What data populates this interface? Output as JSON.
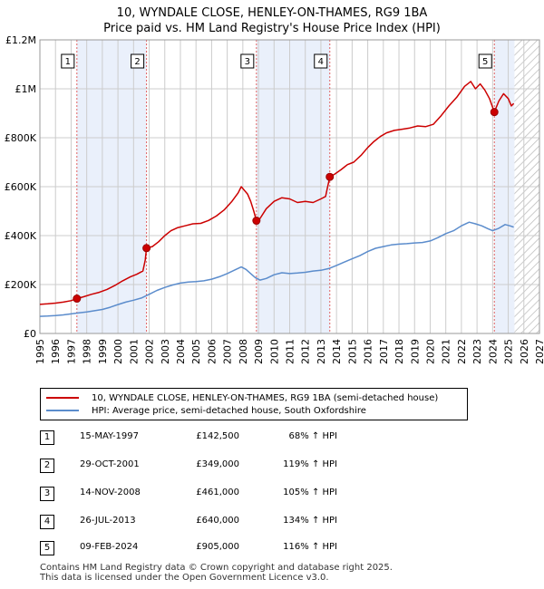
{
  "title": {
    "line1": "10, WYNDALE CLOSE, HENLEY-ON-THAMES, RG9 1BA",
    "line2": "Price paid vs. HM Land Registry's House Price Index (HPI)"
  },
  "colors": {
    "price_line": "#cc0000",
    "hpi_line": "#5b8ccc",
    "shade": "#eaf0fb",
    "marker_line": "#e06060",
    "grid": "#cccccc"
  },
  "chart_data": {
    "type": "line",
    "xlabel": "",
    "ylabel": "",
    "xlim": [
      1995,
      2027
    ],
    "ylim": [
      0,
      1200000
    ],
    "y_ticks": [
      0,
      200000,
      400000,
      600000,
      800000,
      1000000,
      1200000
    ],
    "y_tick_labels": [
      "£0",
      "£200K",
      "£400K",
      "£600K",
      "£800K",
      "£1M",
      "£1.2M"
    ],
    "x_ticks": [
      1995,
      1996,
      1997,
      1998,
      1999,
      2000,
      2001,
      2002,
      2003,
      2004,
      2005,
      2006,
      2007,
      2008,
      2009,
      2010,
      2011,
      2012,
      2013,
      2014,
      2015,
      2016,
      2017,
      2018,
      2019,
      2020,
      2021,
      2022,
      2023,
      2024,
      2025,
      2026,
      2027
    ],
    "x_tick_labels": [
      "1995",
      "1996",
      "1997",
      "1998",
      "1999",
      "2000",
      "2001",
      "2002",
      "2003",
      "2004",
      "2005",
      "2006",
      "2007",
      "2008",
      "2009",
      "2010",
      "2011",
      "2012",
      "2013",
      "2014",
      "2015",
      "2016",
      "2017",
      "2018",
      "2019",
      "2020",
      "2021",
      "2022",
      "2023",
      "2024",
      "2025",
      "2026",
      "2027"
    ],
    "shaded_ranges": [
      [
        1997.37,
        2001.83
      ],
      [
        2008.87,
        2013.57
      ],
      [
        2024.11,
        2025.4
      ]
    ],
    "forecast_start": 2025.4,
    "series": [
      {
        "name": "10, WYNDALE CLOSE, HENLEY-ON-THAMES, RG9 1BA (semi-detached house)",
        "color": "#cc0000",
        "points": [
          [
            1995.0,
            119000
          ],
          [
            1995.5,
            121000
          ],
          [
            1996.0,
            124000
          ],
          [
            1996.5,
            128000
          ],
          [
            1997.0,
            134000
          ],
          [
            1997.37,
            142500
          ],
          [
            1997.8,
            150000
          ],
          [
            1998.3,
            160000
          ],
          [
            1998.8,
            168000
          ],
          [
            1999.3,
            180000
          ],
          [
            1999.8,
            196000
          ],
          [
            2000.3,
            215000
          ],
          [
            2000.8,
            232000
          ],
          [
            2001.2,
            242000
          ],
          [
            2001.6,
            255000
          ],
          [
            2001.75,
            300000
          ],
          [
            2001.83,
            349000
          ],
          [
            2002.2,
            355000
          ],
          [
            2002.6,
            375000
          ],
          [
            2003.0,
            400000
          ],
          [
            2003.4,
            420000
          ],
          [
            2003.8,
            432000
          ],
          [
            2004.3,
            440000
          ],
          [
            2004.8,
            448000
          ],
          [
            2005.3,
            450000
          ],
          [
            2005.8,
            462000
          ],
          [
            2006.3,
            480000
          ],
          [
            2006.8,
            505000
          ],
          [
            2007.3,
            540000
          ],
          [
            2007.7,
            575000
          ],
          [
            2007.9,
            600000
          ],
          [
            2008.1,
            585000
          ],
          [
            2008.3,
            570000
          ],
          [
            2008.5,
            540000
          ],
          [
            2008.7,
            500000
          ],
          [
            2008.87,
            461000
          ],
          [
            2009.1,
            470000
          ],
          [
            2009.5,
            510000
          ],
          [
            2010.0,
            540000
          ],
          [
            2010.5,
            555000
          ],
          [
            2011.0,
            550000
          ],
          [
            2011.5,
            535000
          ],
          [
            2012.0,
            540000
          ],
          [
            2012.5,
            535000
          ],
          [
            2013.0,
            550000
          ],
          [
            2013.3,
            560000
          ],
          [
            2013.4,
            590000
          ],
          [
            2013.57,
            640000
          ],
          [
            2013.9,
            652000
          ],
          [
            2014.3,
            670000
          ],
          [
            2014.7,
            690000
          ],
          [
            2015.1,
            700000
          ],
          [
            2015.6,
            730000
          ],
          [
            2016.0,
            760000
          ],
          [
            2016.4,
            785000
          ],
          [
            2016.8,
            805000
          ],
          [
            2017.2,
            820000
          ],
          [
            2017.7,
            830000
          ],
          [
            2018.2,
            835000
          ],
          [
            2018.7,
            840000
          ],
          [
            2019.2,
            848000
          ],
          [
            2019.7,
            845000
          ],
          [
            2020.2,
            855000
          ],
          [
            2020.7,
            890000
          ],
          [
            2021.2,
            930000
          ],
          [
            2021.7,
            965000
          ],
          [
            2022.2,
            1010000
          ],
          [
            2022.6,
            1030000
          ],
          [
            2022.9,
            1000000
          ],
          [
            2023.2,
            1020000
          ],
          [
            2023.5,
            995000
          ],
          [
            2023.8,
            960000
          ],
          [
            2024.11,
            905000
          ],
          [
            2024.4,
            950000
          ],
          [
            2024.7,
            980000
          ],
          [
            2025.0,
            960000
          ],
          [
            2025.2,
            930000
          ],
          [
            2025.35,
            940000
          ]
        ]
      },
      {
        "name": "HPI: Average price, semi-detached house, South Oxfordshire",
        "color": "#5b8ccc",
        "points": [
          [
            1995.0,
            70000
          ],
          [
            1995.5,
            71000
          ],
          [
            1996.0,
            73000
          ],
          [
            1996.5,
            76000
          ],
          [
            1997.0,
            80000
          ],
          [
            1997.5,
            84000
          ],
          [
            1998.0,
            88000
          ],
          [
            1998.5,
            93000
          ],
          [
            1999.0,
            98000
          ],
          [
            1999.5,
            107000
          ],
          [
            2000.0,
            118000
          ],
          [
            2000.5,
            128000
          ],
          [
            2001.0,
            136000
          ],
          [
            2001.5,
            145000
          ],
          [
            2002.0,
            160000
          ],
          [
            2002.5,
            176000
          ],
          [
            2003.0,
            188000
          ],
          [
            2003.5,
            198000
          ],
          [
            2004.0,
            206000
          ],
          [
            2004.5,
            210000
          ],
          [
            2005.0,
            212000
          ],
          [
            2005.5,
            215000
          ],
          [
            2006.0,
            222000
          ],
          [
            2006.5,
            232000
          ],
          [
            2007.0,
            245000
          ],
          [
            2007.5,
            260000
          ],
          [
            2007.9,
            272000
          ],
          [
            2008.2,
            262000
          ],
          [
            2008.5,
            245000
          ],
          [
            2008.8,
            228000
          ],
          [
            2009.1,
            218000
          ],
          [
            2009.5,
            225000
          ],
          [
            2010.0,
            240000
          ],
          [
            2010.5,
            248000
          ],
          [
            2011.0,
            245000
          ],
          [
            2011.5,
            247000
          ],
          [
            2012.0,
            250000
          ],
          [
            2012.5,
            255000
          ],
          [
            2013.0,
            258000
          ],
          [
            2013.5,
            265000
          ],
          [
            2014.0,
            278000
          ],
          [
            2014.5,
            292000
          ],
          [
            2015.0,
            305000
          ],
          [
            2015.5,
            318000
          ],
          [
            2016.0,
            335000
          ],
          [
            2016.5,
            348000
          ],
          [
            2017.0,
            355000
          ],
          [
            2017.5,
            362000
          ],
          [
            2018.0,
            365000
          ],
          [
            2018.5,
            367000
          ],
          [
            2019.0,
            370000
          ],
          [
            2019.5,
            372000
          ],
          [
            2020.0,
            378000
          ],
          [
            2020.5,
            392000
          ],
          [
            2021.0,
            408000
          ],
          [
            2021.5,
            420000
          ],
          [
            2022.0,
            440000
          ],
          [
            2022.5,
            455000
          ],
          [
            2022.9,
            448000
          ],
          [
            2023.3,
            440000
          ],
          [
            2023.7,
            428000
          ],
          [
            2024.0,
            420000
          ],
          [
            2024.4,
            430000
          ],
          [
            2024.8,
            445000
          ],
          [
            2025.1,
            440000
          ],
          [
            2025.35,
            435000
          ]
        ]
      }
    ],
    "sales": [
      {
        "label": "1",
        "x": 1997.37,
        "value": 142500
      },
      {
        "label": "2",
        "x": 2001.83,
        "value": 349000
      },
      {
        "label": "3",
        "x": 2008.87,
        "value": 461000
      },
      {
        "label": "4",
        "x": 2013.57,
        "value": 640000
      },
      {
        "label": "5",
        "x": 2024.11,
        "value": 905000
      }
    ]
  },
  "legend": {
    "items": [
      {
        "label": "10, WYNDALE CLOSE, HENLEY-ON-THAMES, RG9 1BA (semi-detached house)"
      },
      {
        "label": "HPI: Average price, semi-detached house, South Oxfordshire"
      }
    ]
  },
  "table": {
    "rows": [
      {
        "num": "1",
        "date": "15-MAY-1997",
        "price": "£142,500",
        "hpi": "68% ↑ HPI"
      },
      {
        "num": "2",
        "date": "29-OCT-2001",
        "price": "£349,000",
        "hpi": "119% ↑ HPI"
      },
      {
        "num": "3",
        "date": "14-NOV-2008",
        "price": "£461,000",
        "hpi": "105% ↑ HPI"
      },
      {
        "num": "4",
        "date": "26-JUL-2013",
        "price": "£640,000",
        "hpi": "134% ↑ HPI"
      },
      {
        "num": "5",
        "date": "09-FEB-2024",
        "price": "£905,000",
        "hpi": "116% ↑ HPI"
      }
    ]
  },
  "footer": {
    "line1": "Contains HM Land Registry data © Crown copyright and database right 2025.",
    "line2": "This data is licensed under the Open Government Licence v3.0."
  }
}
